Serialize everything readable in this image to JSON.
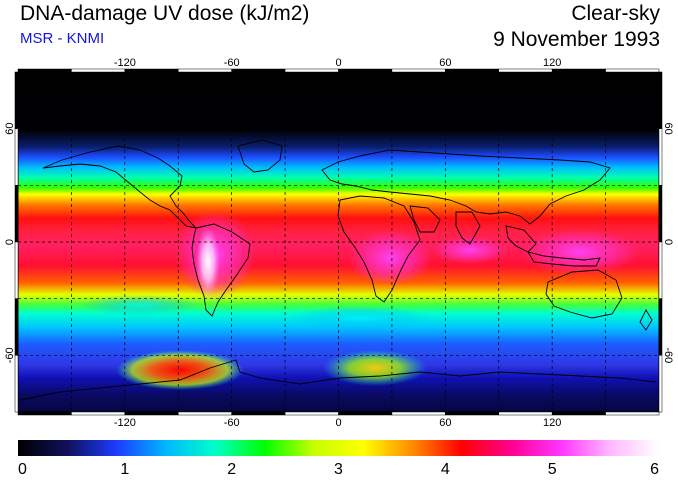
{
  "header": {
    "title": "DNA-damage UV dose (kJ/m2)",
    "source": "MSR - KNMI",
    "condition": "Clear-sky",
    "date": "9 November 1993"
  },
  "map": {
    "projection": "equirectangular",
    "lon_range": [
      -180,
      180
    ],
    "lat_range": [
      -90,
      90
    ],
    "lon_ticks": [
      -120,
      -60,
      0,
      60,
      120
    ],
    "lat_ticks": [
      60,
      0,
      -60
    ],
    "lon_tick_labels": [
      "-120",
      "-60",
      "0",
      "60",
      "120"
    ],
    "lat_tick_labels": [
      "60",
      "0",
      "-60"
    ],
    "gridline_spacing_deg": 30,
    "gridlines": true,
    "coastlines": true
  },
  "colorbar": {
    "min": 0,
    "max": 6,
    "labels": [
      "0",
      "1",
      "2",
      "3",
      "4",
      "5",
      "6"
    ],
    "stops": [
      "#000000",
      "#10105a",
      "#1c3cff",
      "#00b8ff",
      "#00ffc8",
      "#00ff00",
      "#c8ff00",
      "#ffff00",
      "#ff8c00",
      "#ff0000",
      "#ff0090",
      "#ff33ff",
      "#ffb8ff",
      "#ffffff"
    ]
  }
}
